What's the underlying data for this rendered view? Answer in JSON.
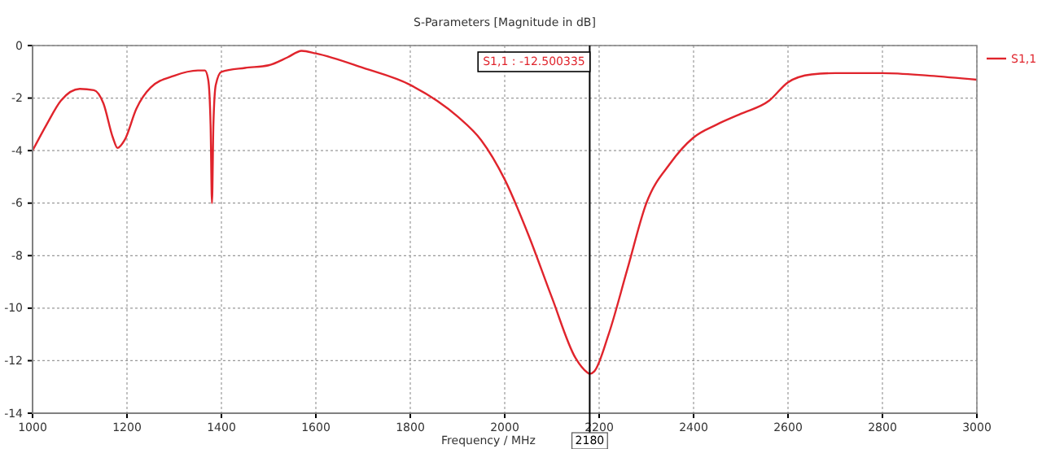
{
  "chart_data": {
    "type": "line",
    "title": "S-Parameters [Magnitude in dB]",
    "xlabel": "Frequency / MHz",
    "x": [
      1000,
      1030,
      1060,
      1100,
      1130,
      1150,
      1170,
      1180,
      1195,
      1220,
      1250,
      1300,
      1350,
      1365,
      1372,
      1377,
      1380,
      1383,
      1388,
      1400,
      1450,
      1500,
      1540,
      1570,
      1600,
      1700,
      1800,
      1900,
      1950,
      2000,
      2050,
      2100,
      2150,
      2175,
      2180,
      2190,
      2220,
      2260,
      2300,
      2350,
      2400,
      2450,
      2500,
      2560,
      2600,
      2650,
      2700,
      2800,
      2900,
      3000
    ],
    "series": [
      {
        "name": "S1,1",
        "color": "#e0242c",
        "values": [
          -4.0,
          -3.0,
          -2.1,
          -1.65,
          -1.7,
          -2.2,
          -3.5,
          -3.9,
          -3.6,
          -2.4,
          -1.6,
          -1.15,
          -0.95,
          -0.95,
          -1.3,
          -3.0,
          -6.0,
          -3.0,
          -1.5,
          -1.0,
          -0.85,
          -0.75,
          -0.45,
          -0.2,
          -0.3,
          -0.85,
          -1.5,
          -2.7,
          -3.6,
          -5.1,
          -7.2,
          -9.6,
          -11.9,
          -12.45,
          -12.5,
          -12.4,
          -11.0,
          -8.5,
          -6.0,
          -4.5,
          -3.5,
          -3.0,
          -2.6,
          -2.1,
          -1.4,
          -1.1,
          -1.05,
          -1.05,
          -1.15,
          -1.3
        ]
      }
    ],
    "xlim": [
      1000,
      3000
    ],
    "xticks": [
      1000,
      1200,
      1400,
      1600,
      1800,
      2000,
      2200,
      2400,
      2600,
      2800,
      3000
    ],
    "ylim": [
      -14,
      0
    ],
    "yticks": [
      -14,
      -12,
      -10,
      -8,
      -6,
      -4,
      -2,
      0
    ],
    "ref_lines": [
      {
        "axis": "x",
        "value": 2180,
        "label": "2180",
        "color": "#000000"
      }
    ],
    "annotations": [
      "S1,1 : -12.500335"
    ],
    "grid": true,
    "legend": "top right",
    "line_style": "solid",
    "marker": "none"
  }
}
